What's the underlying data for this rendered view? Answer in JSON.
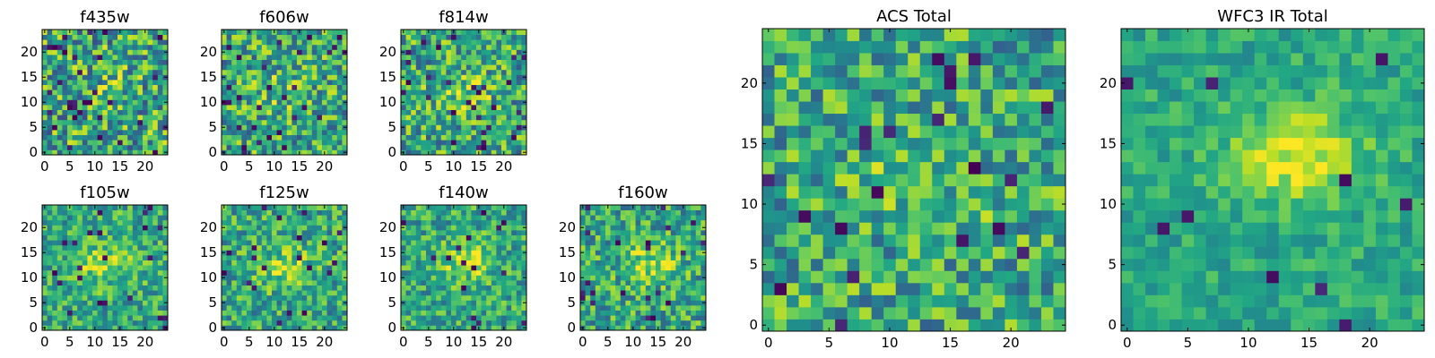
{
  "chart_data": [
    {
      "type": "heatmap",
      "title": "f435w",
      "grid_size": 25,
      "seed": 11,
      "blob": [
        12,
        13,
        0.15
      ],
      "noise": 0.55,
      "dark_frac": 0.05,
      "xticks": [
        "0",
        "5",
        "10",
        "15",
        "20"
      ],
      "yticks": [
        "0",
        "5",
        "10",
        "15",
        "20"
      ],
      "xlim": [
        0,
        25
      ],
      "ylim": [
        0,
        25
      ]
    },
    {
      "type": "heatmap",
      "title": "f606w",
      "grid_size": 25,
      "seed": 23,
      "blob": [
        12,
        12,
        0.3
      ],
      "noise": 0.5,
      "dark_frac": 0.04,
      "xticks": [
        "0",
        "5",
        "10",
        "15",
        "20"
      ],
      "yticks": [
        "0",
        "5",
        "10",
        "15",
        "20"
      ],
      "xlim": [
        0,
        25
      ],
      "ylim": [
        0,
        25
      ]
    },
    {
      "type": "heatmap",
      "title": "f814w",
      "grid_size": 25,
      "seed": 37,
      "blob": [
        12,
        12,
        0.45
      ],
      "noise": 0.5,
      "dark_frac": 0.04,
      "xticks": [
        "0",
        "5",
        "10",
        "15",
        "20"
      ],
      "yticks": [
        "0",
        "5",
        "10",
        "15",
        "20"
      ],
      "xlim": [
        0,
        25
      ],
      "ylim": [
        0,
        25
      ]
    },
    {
      "type": "heatmap",
      "title": "f105w",
      "grid_size": 25,
      "seed": 41,
      "blob": [
        12,
        13,
        0.65
      ],
      "noise": 0.38,
      "dark_frac": 0.03,
      "xticks": [
        "0",
        "5",
        "10",
        "15",
        "20"
      ],
      "yticks": [
        "0",
        "5",
        "10",
        "15",
        "20"
      ],
      "xlim": [
        0,
        25
      ],
      "ylim": [
        0,
        25
      ]
    },
    {
      "type": "heatmap",
      "title": "f125w",
      "grid_size": 25,
      "seed": 53,
      "blob": [
        12,
        12,
        0.6
      ],
      "noise": 0.4,
      "dark_frac": 0.03,
      "xticks": [
        "0",
        "5",
        "10",
        "15",
        "20"
      ],
      "yticks": [
        "0",
        "5",
        "10",
        "15",
        "20"
      ],
      "xlim": [
        0,
        25
      ],
      "ylim": [
        0,
        25
      ]
    },
    {
      "type": "heatmap",
      "title": "f140w",
      "grid_size": 25,
      "seed": 67,
      "blob": [
        13,
        13,
        0.65
      ],
      "noise": 0.38,
      "dark_frac": 0.03,
      "xticks": [
        "0",
        "5",
        "10",
        "15",
        "20"
      ],
      "yticks": [
        "0",
        "5",
        "10",
        "15",
        "20"
      ],
      "xlim": [
        0,
        25
      ],
      "ylim": [
        0,
        25
      ]
    },
    {
      "type": "heatmap",
      "title": "f160w",
      "grid_size": 25,
      "seed": 79,
      "blob": [
        14,
        13,
        0.6
      ],
      "noise": 0.42,
      "dark_frac": 0.05,
      "xticks": [
        "0",
        "5",
        "10",
        "15",
        "20"
      ],
      "yticks": [
        "0",
        "5",
        "10",
        "15",
        "20"
      ],
      "xlim": [
        0,
        25
      ],
      "ylim": [
        0,
        25
      ]
    },
    {
      "type": "heatmap",
      "title": "ACS Total",
      "grid_size": 25,
      "seed": 97,
      "blob": [
        12,
        12,
        0.35
      ],
      "noise": 0.45,
      "dark_frac": 0.035,
      "xticks": [
        "0",
        "5",
        "10",
        "15",
        "20"
      ],
      "yticks": [
        "0",
        "5",
        "10",
        "15",
        "20"
      ],
      "xlim": [
        0,
        25
      ],
      "ylim": [
        0,
        25
      ]
    },
    {
      "type": "heatmap",
      "title": "WFC3 IR Total",
      "grid_size": 25,
      "seed": 101,
      "blob": [
        14,
        14,
        0.85
      ],
      "noise": 0.22,
      "dark_frac": 0.02,
      "xticks": [
        "0",
        "5",
        "10",
        "15",
        "20"
      ],
      "yticks": [
        "0",
        "5",
        "10",
        "15",
        "20"
      ],
      "xlim": [
        0,
        25
      ],
      "ylim": [
        0,
        25
      ]
    }
  ]
}
